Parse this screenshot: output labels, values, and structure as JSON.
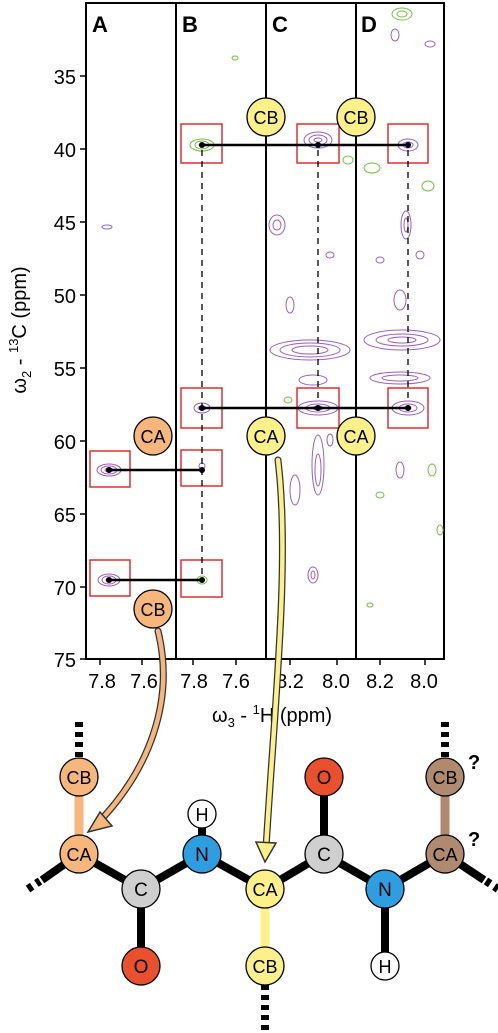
{
  "panels": [
    {
      "label": "A",
      "x_ticks": [
        "7.8",
        "7.6"
      ]
    },
    {
      "label": "B",
      "x_ticks": [
        "7.8",
        "7.6"
      ]
    },
    {
      "label": "C",
      "x_ticks": [
        "8.2",
        "8.0"
      ]
    },
    {
      "label": "D",
      "x_ticks": [
        "8.2",
        "8.0"
      ]
    }
  ],
  "y_axis": {
    "label_omega": "ω",
    "label_sub": "2",
    "label_mid": " - ",
    "label_sup": "13",
    "label_end": "C  (ppm)",
    "ticks": [
      "35",
      "40",
      "45",
      "50",
      "55",
      "60",
      "65",
      "70",
      "75"
    ]
  },
  "x_axis": {
    "label_omega": "ω",
    "label_sub": "3",
    "label_mid": " - ",
    "label_sup": "1",
    "label_end": "H  (ppm)"
  },
  "circles": {
    "ca": "CA",
    "cb": "CB",
    "n": "N",
    "c": "C",
    "o": "O",
    "h": "H",
    "question": "?"
  },
  "colors": {
    "orange": "#f6b67c",
    "yellow": "#fbf08a",
    "tan": "#b08a6e",
    "nitrogen": "#2f9ee0",
    "carbon": "#cfcfcf",
    "oxygen": "#e8502e",
    "purple": "#9a5fc0",
    "green": "#74c043",
    "box": "#e03030"
  }
}
